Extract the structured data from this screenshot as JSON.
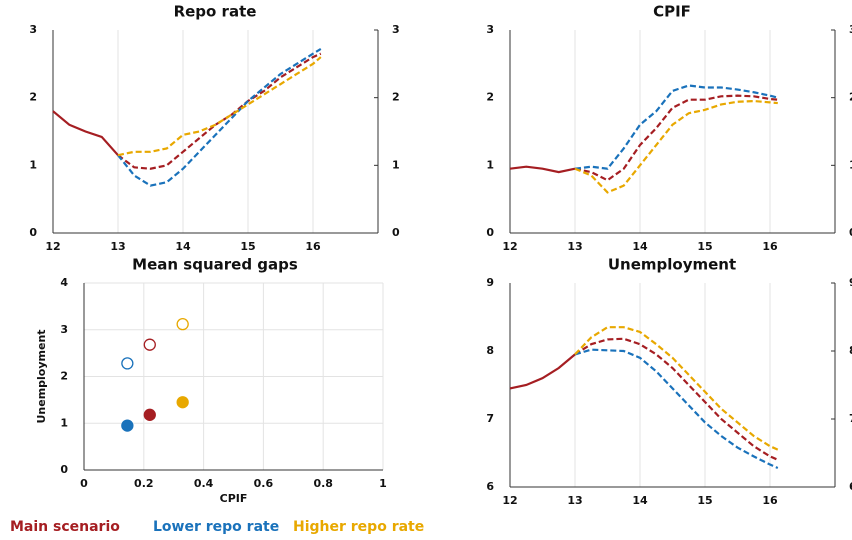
{
  "chart_data": [
    {
      "type": "line",
      "title": "Repo rate",
      "xlim": [
        12,
        17
      ],
      "xticks": [
        12,
        13,
        14,
        15,
        16
      ],
      "ylim": [
        0,
        3
      ],
      "yticks": [
        0,
        1,
        2,
        3
      ],
      "y2lim": [
        0,
        3
      ],
      "y2ticks": [
        0,
        1,
        2,
        3
      ],
      "grid": "x",
      "forecast_start": 13,
      "series": [
        {
          "color": "#a51e22",
          "x": [
            12,
            12.25,
            12.5,
            12.75,
            13,
            13.25,
            13.5,
            13.75,
            14,
            14.25,
            14.5,
            14.75,
            15,
            15.25,
            15.5,
            15.75,
            16,
            16.12
          ],
          "values": [
            1.8,
            1.6,
            1.5,
            1.42,
            1.15,
            0.97,
            0.95,
            1.0,
            1.2,
            1.4,
            1.6,
            1.75,
            1.95,
            2.1,
            2.3,
            2.45,
            2.6,
            2.65
          ]
        },
        {
          "color": "#1a72bb",
          "x": [
            13,
            13.25,
            13.5,
            13.75,
            14,
            14.25,
            14.5,
            14.75,
            15,
            15.25,
            15.5,
            15.75,
            16,
            16.12
          ],
          "values": [
            1.15,
            0.85,
            0.7,
            0.75,
            0.95,
            1.2,
            1.45,
            1.7,
            1.95,
            2.15,
            2.35,
            2.5,
            2.65,
            2.72
          ]
        },
        {
          "color": "#e8a800",
          "x": [
            13,
            13.25,
            13.5,
            13.75,
            14,
            14.25,
            14.5,
            14.75,
            15,
            15.25,
            15.5,
            15.75,
            16,
            16.12
          ],
          "values": [
            1.15,
            1.2,
            1.2,
            1.25,
            1.45,
            1.5,
            1.6,
            1.75,
            1.9,
            2.05,
            2.2,
            2.35,
            2.5,
            2.6
          ]
        }
      ]
    },
    {
      "type": "line",
      "title": "CPIF",
      "xlim": [
        12,
        17
      ],
      "xticks": [
        12,
        13,
        14,
        15,
        16
      ],
      "ylim": [
        0,
        3
      ],
      "yticks": [
        0,
        1,
        2,
        3
      ],
      "y2lim": [
        0,
        3
      ],
      "y2ticks": [
        0,
        1,
        2,
        3
      ],
      "grid": "x",
      "forecast_start": 13,
      "series": [
        {
          "color": "#a51e22",
          "x": [
            12,
            12.25,
            12.5,
            12.75,
            13,
            13.25,
            13.5,
            13.75,
            14,
            14.25,
            14.5,
            14.75,
            15,
            15.25,
            15.5,
            15.75,
            16,
            16.12
          ],
          "values": [
            0.95,
            0.98,
            0.95,
            0.9,
            0.95,
            0.9,
            0.78,
            0.95,
            1.3,
            1.55,
            1.85,
            1.97,
            1.97,
            2.02,
            2.03,
            2.02,
            1.98,
            1.97
          ]
        },
        {
          "color": "#1a72bb",
          "x": [
            13,
            13.25,
            13.5,
            13.75,
            14,
            14.25,
            14.5,
            14.75,
            15,
            15.25,
            15.5,
            15.75,
            16,
            16.12
          ],
          "values": [
            0.95,
            0.98,
            0.95,
            1.25,
            1.6,
            1.8,
            2.1,
            2.18,
            2.15,
            2.15,
            2.12,
            2.08,
            2.03,
            2.0
          ]
        },
        {
          "color": "#e8a800",
          "x": [
            13,
            13.25,
            13.5,
            13.75,
            14,
            14.25,
            14.5,
            14.75,
            15,
            15.25,
            15.5,
            15.75,
            16,
            16.12
          ],
          "values": [
            0.95,
            0.85,
            0.6,
            0.7,
            1.0,
            1.3,
            1.6,
            1.77,
            1.82,
            1.9,
            1.94,
            1.95,
            1.93,
            1.92
          ]
        }
      ]
    },
    {
      "type": "scatter",
      "title": "Mean squared gaps",
      "xlabel": "CPIF",
      "ylabel": "Unemployment",
      "xlim": [
        0,
        1
      ],
      "xticks": [
        0,
        0.2,
        0.4,
        0.6,
        0.8,
        1
      ],
      "ylim": [
        0,
        4
      ],
      "yticks": [
        0,
        1,
        2,
        3,
        4
      ],
      "grid": "both",
      "series": [
        {
          "color": "#a51e22",
          "x": [
            0.22,
            0.22
          ],
          "values": [
            2.68,
            1.18
          ],
          "markers": [
            "open",
            "filled"
          ]
        },
        {
          "color": "#1a72bb",
          "x": [
            0.145,
            0.145
          ],
          "values": [
            2.28,
            0.95
          ],
          "markers": [
            "open",
            "filled"
          ]
        },
        {
          "color": "#e8a800",
          "x": [
            0.33,
            0.33
          ],
          "values": [
            3.12,
            1.45
          ],
          "markers": [
            "open",
            "filled"
          ]
        }
      ]
    },
    {
      "type": "line",
      "title": "Unemployment",
      "xlim": [
        12,
        17
      ],
      "xticks": [
        12,
        13,
        14,
        15,
        16
      ],
      "ylim": [
        6,
        9
      ],
      "yticks": [
        6,
        7,
        8,
        9
      ],
      "y2lim": [
        6,
        9
      ],
      "y2ticks": [
        6,
        7,
        8,
        9
      ],
      "grid": "x",
      "forecast_start": 13,
      "series": [
        {
          "color": "#a51e22",
          "x": [
            12,
            12.25,
            12.5,
            12.75,
            13,
            13.25,
            13.5,
            13.75,
            14,
            14.25,
            14.5,
            14.75,
            15,
            15.25,
            15.5,
            15.75,
            16,
            16.12
          ],
          "values": [
            7.45,
            7.5,
            7.6,
            7.75,
            7.95,
            8.1,
            8.17,
            8.18,
            8.1,
            7.95,
            7.75,
            7.5,
            7.25,
            7.0,
            6.8,
            6.6,
            6.45,
            6.4
          ]
        },
        {
          "color": "#1a72bb",
          "x": [
            13,
            13.25,
            13.5,
            13.75,
            14,
            14.25,
            14.5,
            14.75,
            15,
            15.25,
            15.5,
            15.75,
            16,
            16.12
          ],
          "values": [
            7.95,
            8.02,
            8.01,
            8.0,
            7.9,
            7.7,
            7.45,
            7.2,
            6.95,
            6.75,
            6.58,
            6.45,
            6.33,
            6.28
          ]
        },
        {
          "color": "#e8a800",
          "x": [
            13,
            13.25,
            13.5,
            13.75,
            14,
            14.25,
            14.5,
            14.75,
            15,
            15.25,
            15.5,
            15.75,
            16,
            16.12
          ],
          "values": [
            7.95,
            8.2,
            8.35,
            8.35,
            8.28,
            8.1,
            7.9,
            7.65,
            7.4,
            7.15,
            6.95,
            6.75,
            6.6,
            6.55
          ]
        }
      ]
    }
  ],
  "legend": [
    {
      "name": "Main scenario",
      "color": "#a51e22"
    },
    {
      "name": "Lower repo rate",
      "color": "#1a72bb"
    },
    {
      "name": "Higher repo rate",
      "color": "#e8a800"
    }
  ]
}
